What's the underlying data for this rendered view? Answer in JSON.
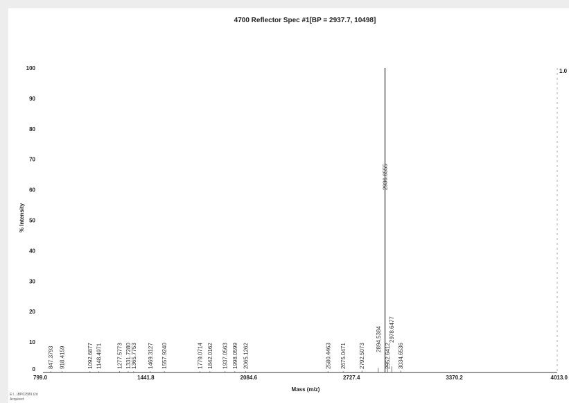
{
  "chart_data": {
    "type": "line",
    "title": "4700 Reflector Spec #1[BP = 2937.7, 10498]",
    "xlabel": "Mass (m/z)",
    "ylabel": "% Intensity",
    "xlim": [
      799.0,
      4013.0
    ],
    "ylim": [
      0,
      100
    ],
    "x_ticks": [
      "799.0",
      "1441.8",
      "2084.6",
      "2727.4",
      "3370.2",
      "4013.0"
    ],
    "y_ticks": [
      "0",
      "10",
      "20",
      "30",
      "40",
      "50",
      "60",
      "70",
      "80",
      "90",
      "100"
    ],
    "right_label": "1.0",
    "grid": false,
    "peaks": [
      {
        "mz": 847.3793,
        "label": "847.3793",
        "intensity": 0.4
      },
      {
        "mz": 918.4159,
        "label": "918.4159",
        "intensity": 0.4
      },
      {
        "mz": 1092.6877,
        "label": "1092.6877",
        "intensity": 0.4
      },
      {
        "mz": 1148.4971,
        "label": "1148.4971",
        "intensity": 0.4
      },
      {
        "mz": 1277.5773,
        "label": "1277.5773",
        "intensity": 0.4
      },
      {
        "mz": 1331.728,
        "label": "1331.7280",
        "intensity": 0.4
      },
      {
        "mz": 1365.7753,
        "label": "1365.7753",
        "intensity": 0.4
      },
      {
        "mz": 1469.3127,
        "label": "1469.3127",
        "intensity": 0.4
      },
      {
        "mz": 1557.924,
        "label": "1557.9240",
        "intensity": 0.4
      },
      {
        "mz": 1779.0714,
        "label": "1779.0714",
        "intensity": 0.4
      },
      {
        "mz": 1842.0162,
        "label": "1842.0162",
        "intensity": 0.4
      },
      {
        "mz": 1937.0563,
        "label": "1937.0563",
        "intensity": 0.4
      },
      {
        "mz": 1998.0599,
        "label": "1998.0599",
        "intensity": 0.4
      },
      {
        "mz": 2065.1262,
        "label": "2065.1262",
        "intensity": 0.4
      },
      {
        "mz": 2580.4463,
        "label": "2580.4463",
        "intensity": 0.4
      },
      {
        "mz": 2675.0471,
        "label": "2675.0471",
        "intensity": 0.4
      },
      {
        "mz": 2792.5073,
        "label": "2792.5073",
        "intensity": 0.6
      },
      {
        "mz": 2894.5384,
        "label": "2894.5384",
        "intensity": 1.5
      },
      {
        "mz": 2936.6555,
        "label": "2936.6555",
        "intensity": 100
      },
      {
        "mz": 2952.6412,
        "label": "2952.6412",
        "intensity": 3
      },
      {
        "mz": 2978.6477,
        "label": "2978.6477",
        "intensity": 2
      },
      {
        "mz": 3034.6536,
        "label": "3034.6536",
        "intensity": 0.6
      }
    ]
  },
  "footer": {
    "line1": "E:\\...\\BP02589.t2d",
    "line2": "Acquired:"
  }
}
